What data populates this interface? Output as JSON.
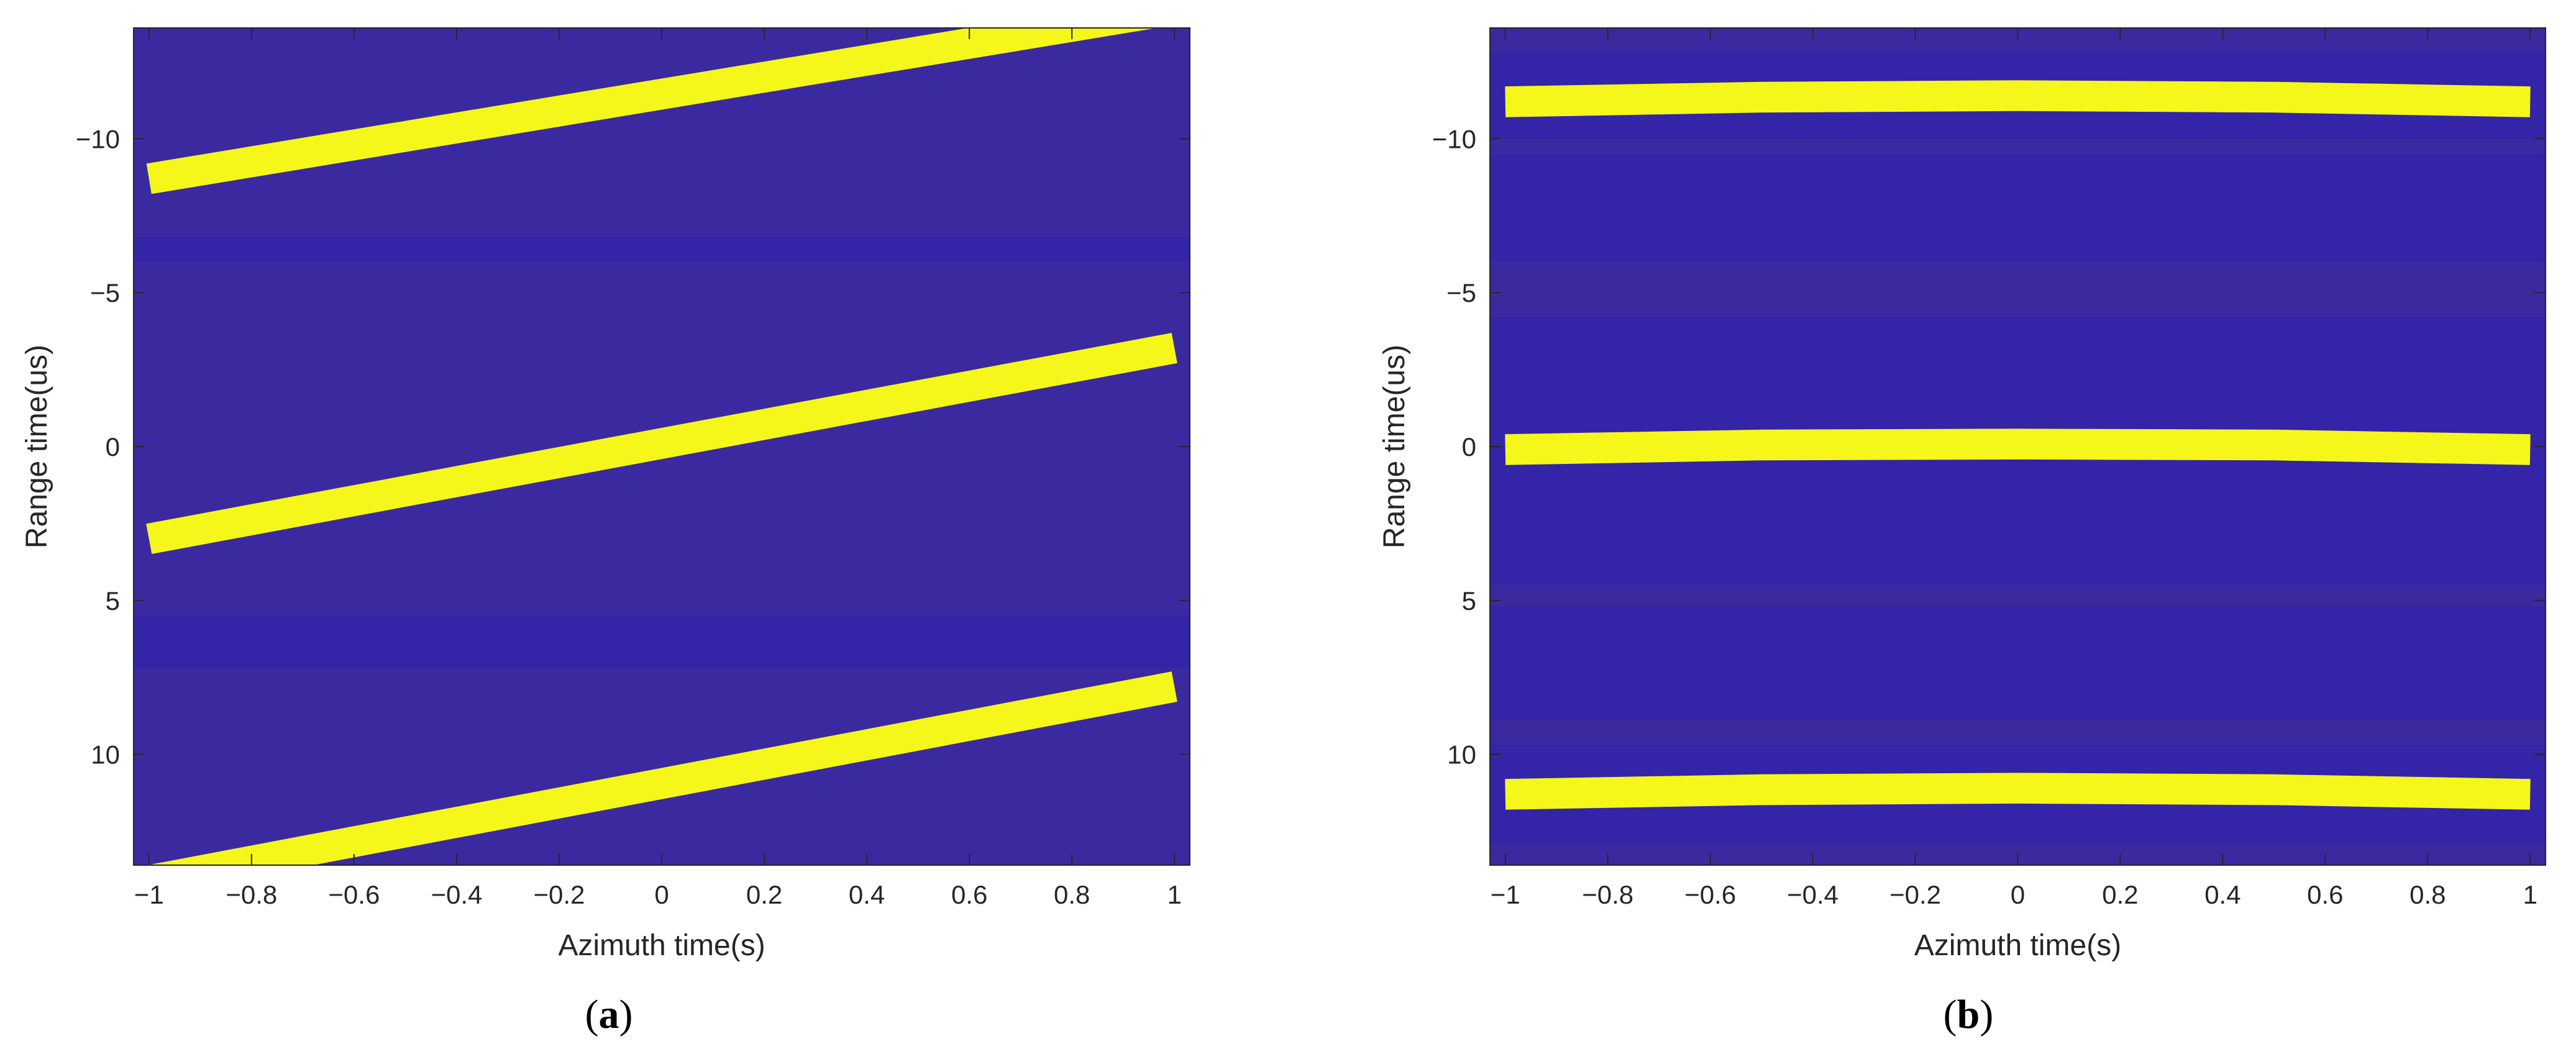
{
  "chart_data": [
    {
      "type": "heatmap",
      "panel_label": "a",
      "xlabel": "Azimuth time(s)",
      "ylabel": "Range time(us)",
      "xlim": [
        -1.03,
        1.03
      ],
      "ylim": [
        -13.6,
        13.6
      ],
      "y_reversed": true,
      "xticks": [
        -1,
        -0.8,
        -0.6,
        -0.4,
        -0.2,
        0,
        0.2,
        0.4,
        0.6,
        0.8,
        1
      ],
      "xtick_labels": [
        "−1",
        "−0.8",
        "−0.6",
        "−0.4",
        "−0.2",
        "0",
        "0.2",
        "0.4",
        "0.6",
        "0.8",
        "1"
      ],
      "yticks": [
        -10,
        -5,
        0,
        5,
        10
      ],
      "ytick_labels": [
        "−10",
        "−5",
        "0",
        "5",
        "10"
      ],
      "colors": {
        "background": "#3B2A9F",
        "dark_band": "#3324A8",
        "trace": "#F5F71A"
      },
      "bands": [
        {
          "y0": -6.8,
          "y1": -6.0
        },
        {
          "y0": 5.5,
          "y1": 7.2
        }
      ],
      "series": [
        {
          "x": [
            -1,
            1
          ],
          "y": [
            -8.7,
            -14.2
          ],
          "width": 1.0
        },
        {
          "x": [
            -1,
            1
          ],
          "y": [
            3.0,
            -3.2
          ],
          "width": 1.0
        },
        {
          "x": [
            -1,
            1
          ],
          "y": [
            14.1,
            7.8
          ],
          "width": 1.0
        }
      ]
    },
    {
      "type": "heatmap",
      "panel_label": "b",
      "xlabel": "Azimuth time(s)",
      "ylabel": "Range time(us)",
      "xlim": [
        -1.03,
        1.03
      ],
      "ylim": [
        -13.6,
        13.6
      ],
      "y_reversed": true,
      "xticks": [
        -1,
        -0.8,
        -0.6,
        -0.4,
        -0.2,
        0,
        0.2,
        0.4,
        0.6,
        0.8,
        1
      ],
      "xtick_labels": [
        "−1",
        "−0.8",
        "−0.6",
        "−0.4",
        "−0.2",
        "0",
        "0.2",
        "0.4",
        "0.6",
        "0.8",
        "1"
      ],
      "yticks": [
        -10,
        -5,
        0,
        5,
        10
      ],
      "ytick_labels": [
        "−10",
        "−5",
        "0",
        "5",
        "10"
      ],
      "colors": {
        "background": "#3324A8",
        "light_band": "#3B2A9F",
        "trace": "#F5F71A"
      },
      "bands": [
        {
          "y0": -13.6,
          "y1": -12.8
        },
        {
          "y0": -10.0,
          "y1": -9.5
        },
        {
          "y0": -6.0,
          "y1": -4.2
        },
        {
          "y0": 4.5,
          "y1": 5.2
        },
        {
          "y0": 8.9,
          "y1": 9.7
        },
        {
          "y0": 12.9,
          "y1": 13.6
        }
      ],
      "series": [
        {
          "x": [
            -1,
            -0.5,
            0,
            0.5,
            1
          ],
          "y": [
            -11.2,
            -11.35,
            -11.4,
            -11.35,
            -11.2
          ],
          "width": 1.0
        },
        {
          "x": [
            -1,
            -0.5,
            0,
            0.5,
            1
          ],
          "y": [
            0.1,
            -0.05,
            -0.08,
            -0.05,
            0.1
          ],
          "width": 1.0
        },
        {
          "x": [
            -1,
            -0.5,
            0,
            0.5,
            1
          ],
          "y": [
            11.3,
            11.15,
            11.1,
            11.15,
            11.3
          ],
          "width": 1.0
        }
      ]
    }
  ]
}
